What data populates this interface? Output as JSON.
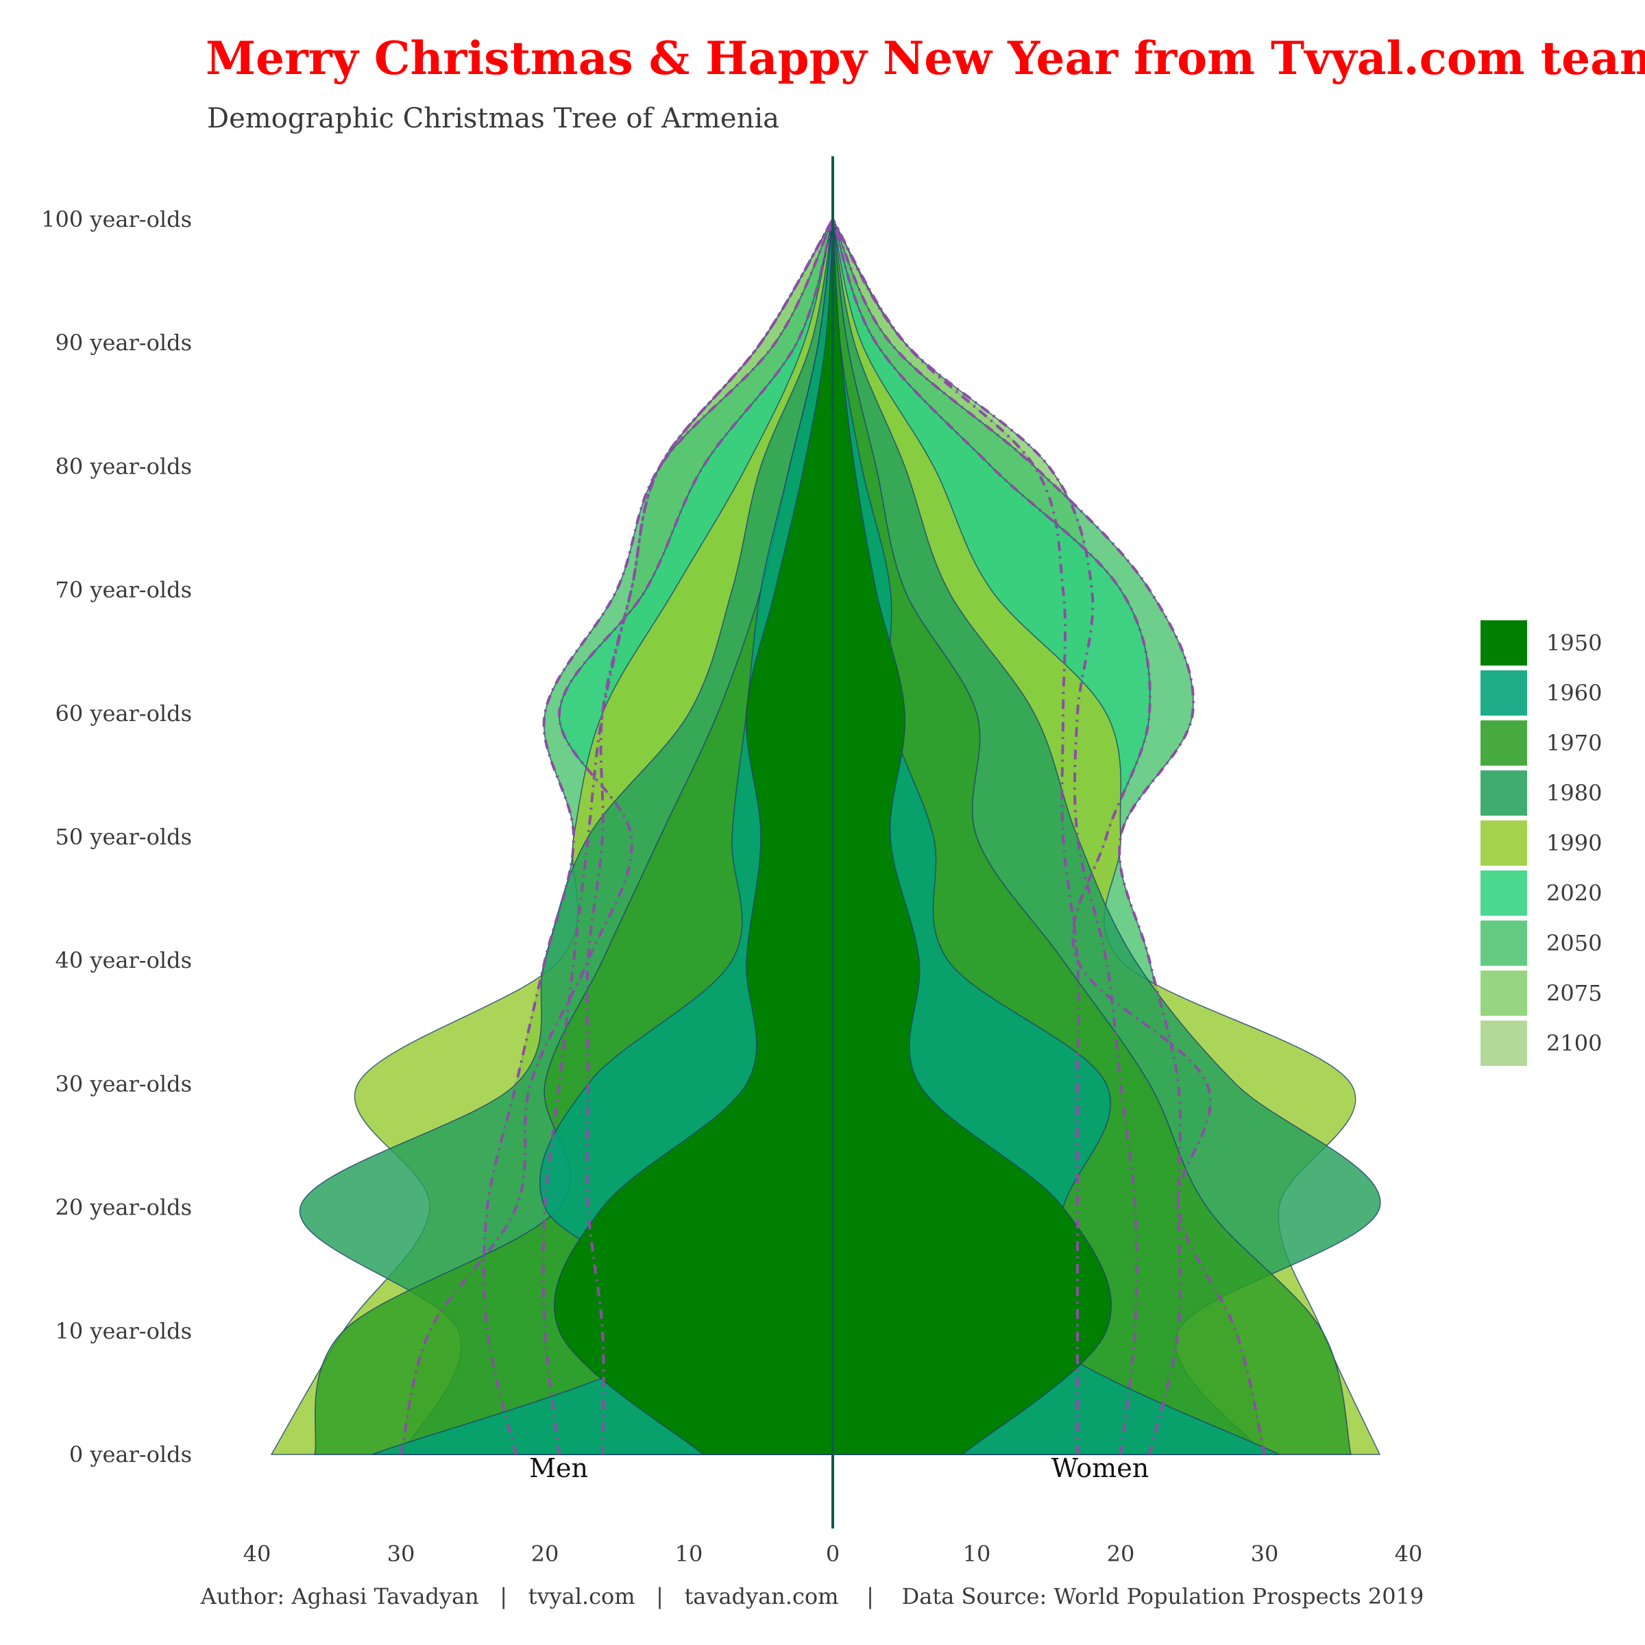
{
  "title": "Merry Christmas & Happy New Year from Tvyal.com team",
  "subtitle": "Demographic Christmas Tree of Armenia",
  "caption": "Author: Aghasi Tavadyan   |   tvyal.com   |   tavadyan.com    |    Data Source: World Population Prospects 2019",
  "colors": {
    "title": "#ff0000",
    "axis": "#0d5c4a",
    "outline": "#1f3f6e",
    "dashed": "#8a4fa3"
  },
  "chart_data": {
    "type": "area",
    "orientation": "population-pyramid",
    "title": "Merry Christmas & Happy New Year from Tvyal.com team",
    "subtitle": "Demographic Christmas Tree of Armenia",
    "side_labels": {
      "left": "Men",
      "right": "Women"
    },
    "x_ticks": [
      "40",
      "30",
      "20",
      "10",
      "0",
      "10",
      "20",
      "30",
      "40"
    ],
    "xlim": [
      -40,
      40
    ],
    "y_ticks": [
      "0 year-olds",
      "10 year-olds",
      "20 year-olds",
      "30 year-olds",
      "40 year-olds",
      "50 year-olds",
      "60 year-olds",
      "70 year-olds",
      "80 year-olds",
      "90 year-olds",
      "100 year-olds"
    ],
    "ylim": [
      0,
      100
    ],
    "grid": false,
    "legend_position": "right",
    "ages": [
      0,
      10,
      20,
      30,
      40,
      50,
      60,
      70,
      80,
      90,
      100
    ],
    "series": [
      {
        "name": "1950",
        "color": "#008000",
        "men": [
          9,
          19,
          16,
          6,
          6,
          5,
          6,
          4,
          2,
          0.5,
          0
        ],
        "women": [
          9,
          19,
          16,
          6,
          6,
          4,
          5,
          3,
          1.5,
          0.5,
          0
        ]
      },
      {
        "name": "1960",
        "color": "#00a079",
        "men": [
          32,
          10,
          20,
          17,
          7,
          7,
          6,
          5,
          3,
          1,
          0
        ],
        "women": [
          31,
          14,
          16,
          19,
          8,
          7,
          4,
          4,
          2,
          0.5,
          0
        ]
      },
      {
        "name": "1970",
        "color": "#2e9e26",
        "men": [
          36,
          34,
          19,
          20,
          16,
          12,
          8,
          5,
          3,
          1,
          0
        ],
        "women": [
          36,
          34,
          26,
          22,
          16,
          10,
          10,
          5,
          3,
          1,
          0
        ]
      },
      {
        "name": "1980",
        "color": "#25a05c",
        "men": [
          30,
          26,
          37,
          22,
          20,
          17,
          10,
          7,
          5,
          1.5,
          0
        ],
        "women": [
          30,
          24,
          38,
          28,
          21,
          17,
          14,
          8,
          5,
          1.5,
          0
        ]
      },
      {
        "name": "1990",
        "color": "#99cc33",
        "men": [
          39,
          34,
          28,
          33,
          19,
          18,
          16,
          11,
          6,
          2,
          0
        ],
        "women": [
          38,
          34,
          31,
          36,
          20,
          20,
          19,
          11,
          7,
          2,
          0
        ]
      },
      {
        "name": "2020",
        "color": "#33d17f",
        "men": [
          30,
          28,
          22,
          21,
          17,
          14,
          19,
          13,
          9,
          2.5,
          0
        ],
        "women": [
          30,
          28,
          24,
          26,
          17,
          19,
          22,
          20,
          11,
          3,
          0
        ]
      },
      {
        "name": "2050",
        "color": "#4dc46f",
        "men": [
          22,
          24,
          24,
          22,
          20,
          18,
          20,
          15,
          12,
          4,
          0
        ],
        "women": [
          22,
          24,
          24,
          24,
          22,
          20,
          25,
          22,
          14,
          4,
          0
        ]
      },
      {
        "name": "2075",
        "color": "#88d070",
        "men": [
          19,
          20,
          20,
          19,
          18,
          17,
          16,
          14,
          12,
          5,
          0
        ],
        "women": [
          20,
          21,
          21,
          20,
          19,
          17,
          17,
          18,
          15,
          5,
          0
        ]
      },
      {
        "name": "2100",
        "color": "#a8d48a",
        "men": [
          16,
          16,
          17,
          17,
          17,
          16,
          16,
          14,
          12,
          5,
          0
        ],
        "women": [
          17,
          17,
          17,
          17,
          17,
          16,
          16,
          16,
          14,
          5,
          0
        ]
      }
    ]
  }
}
